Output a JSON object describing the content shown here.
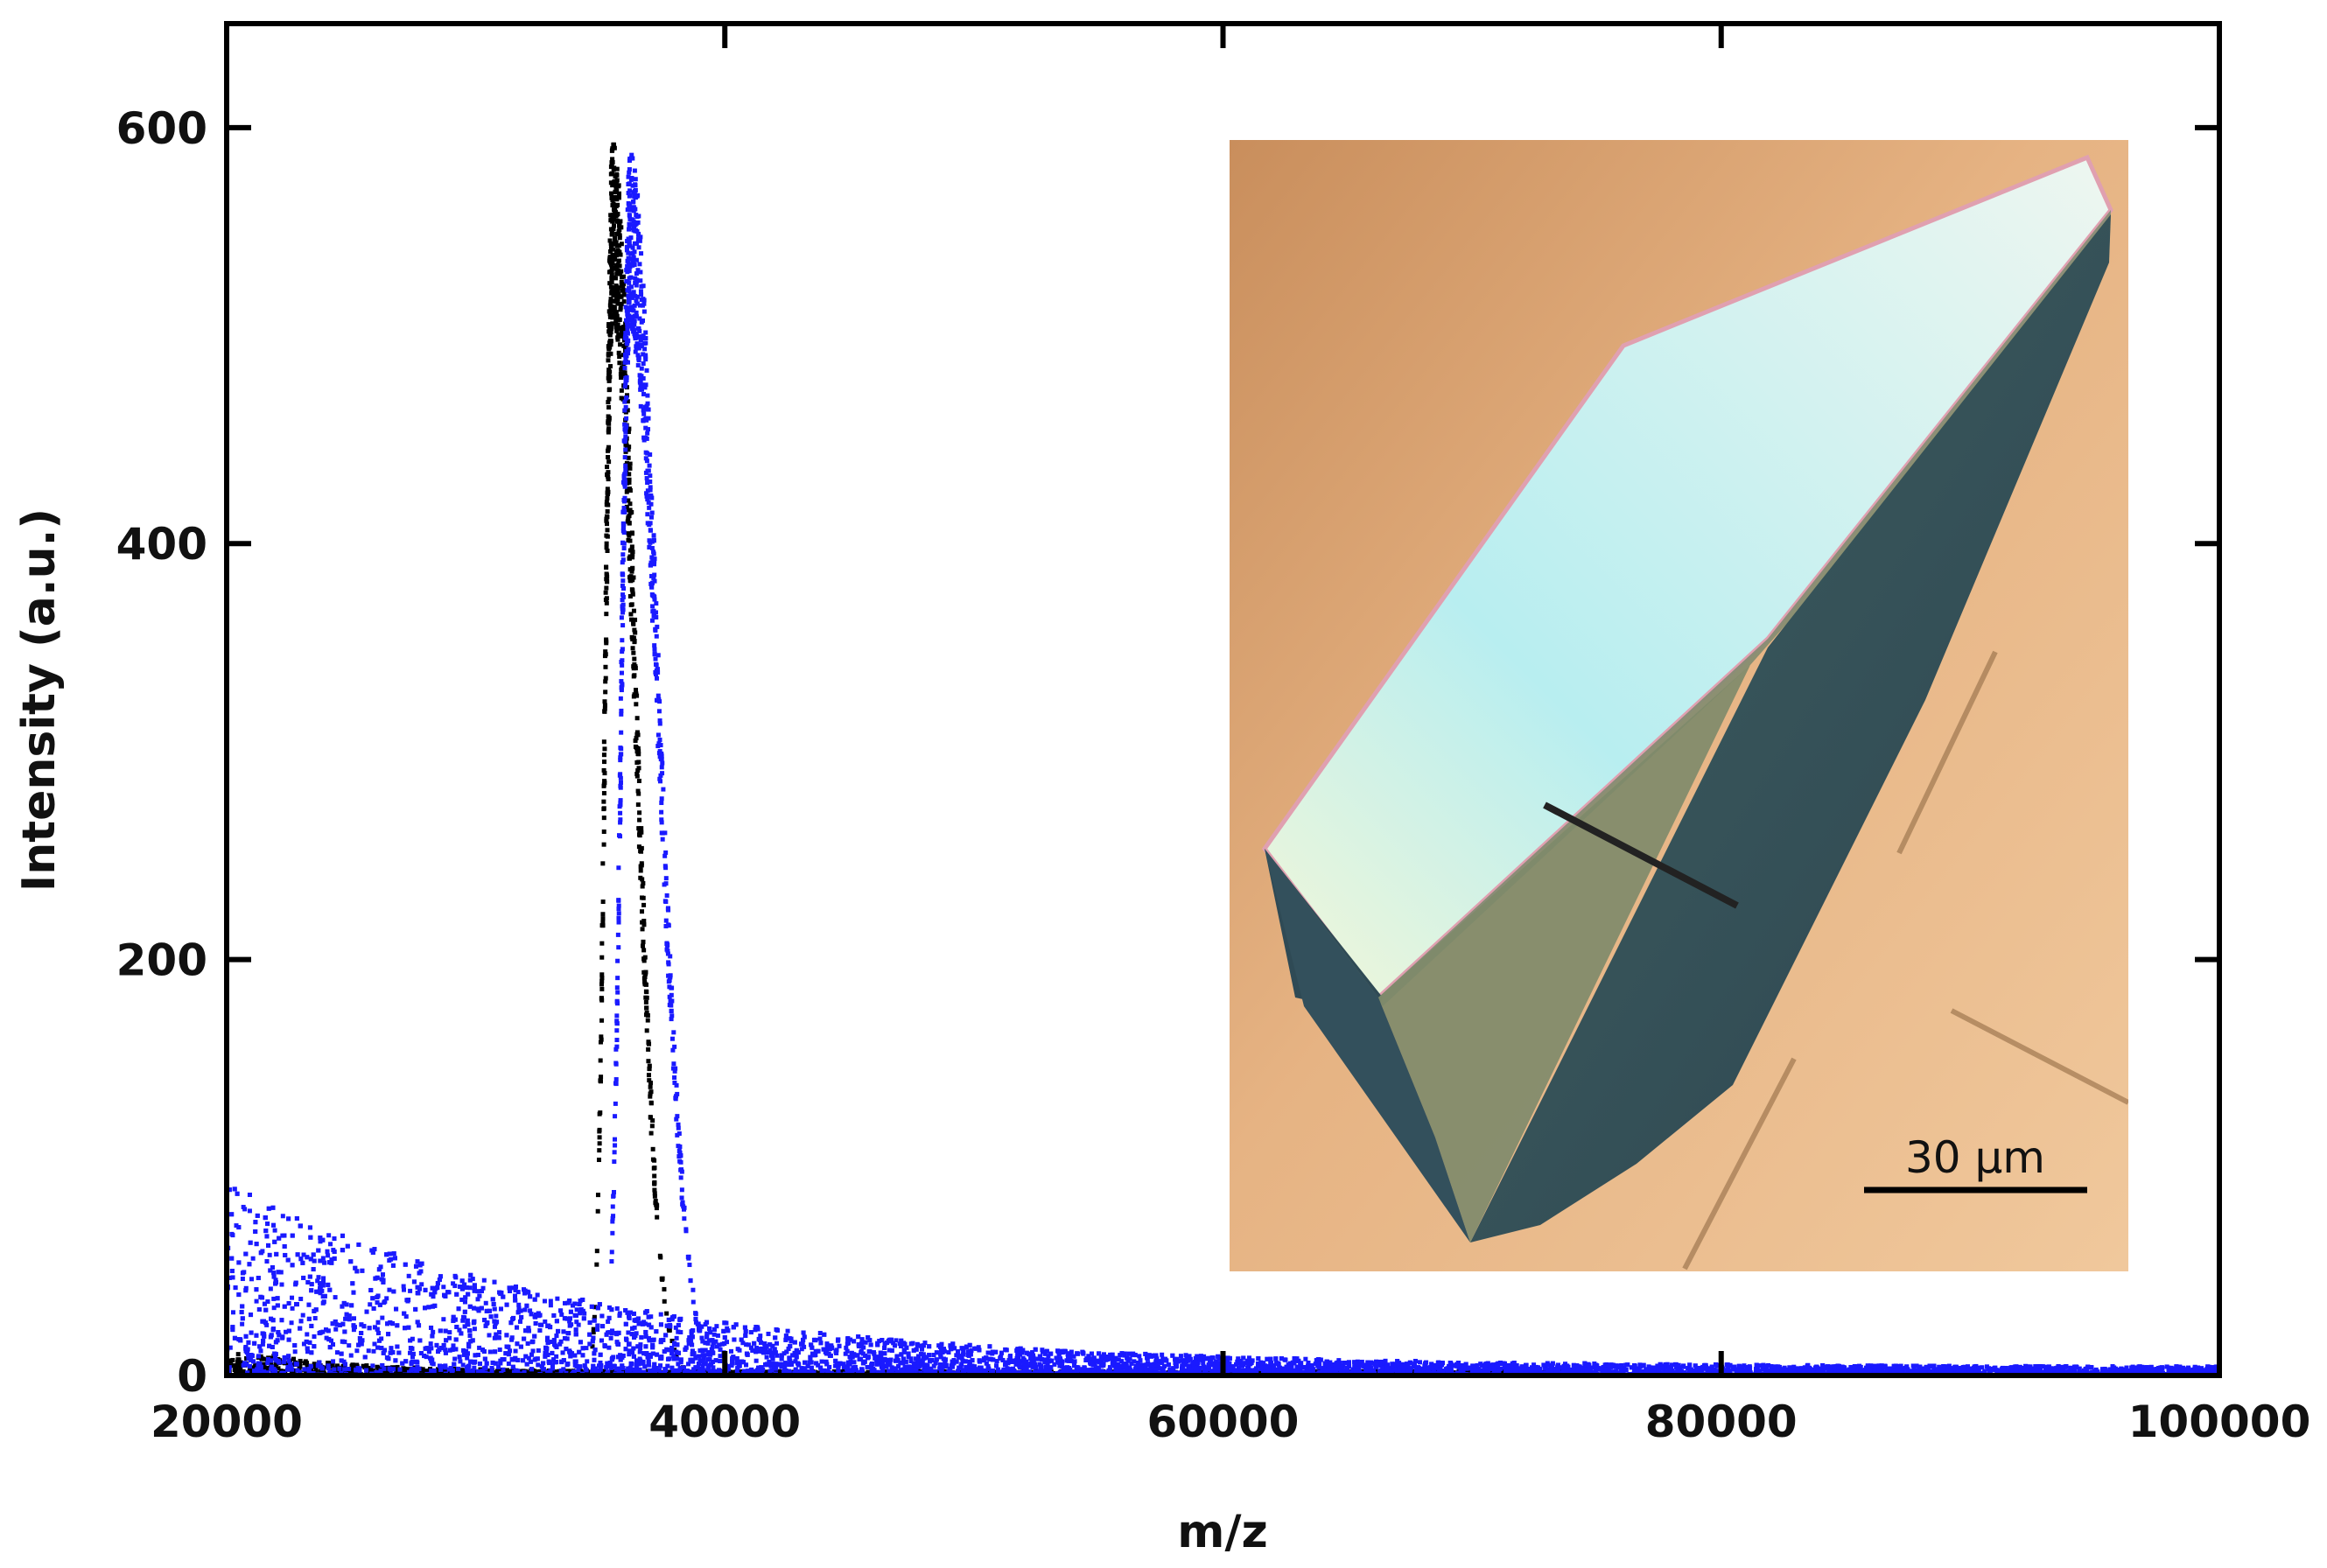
{
  "chart_data": {
    "type": "scatter",
    "title": "",
    "xlabel": "m/z",
    "ylabel": "Intensity (a.u.)",
    "xlim": [
      20000,
      100000
    ],
    "ylim": [
      0,
      650
    ],
    "x_ticks": [
      20000,
      40000,
      60000,
      80000,
      100000
    ],
    "x_tick_labels": [
      "20000",
      "40000",
      "60000",
      "80000",
      "100000"
    ],
    "y_ticks": [
      0,
      200,
      400,
      600
    ],
    "y_tick_labels": [
      "0",
      "200",
      "400",
      "600"
    ],
    "grid": false,
    "legend": "none",
    "series": [
      {
        "color": "#000000",
        "peak_x": 35500,
        "peak_y": 595,
        "baseline_x_range": [
          20000,
          75000
        ],
        "baseline_y_max": 12
      },
      {
        "color": "#1a1aff",
        "peak_x": 36200,
        "peak_y": 590,
        "baseline_x_range": [
          20000,
          100000
        ],
        "baseline_y_max": 90
      }
    ],
    "inset": {
      "description_icon": "crystal-micrograph",
      "scale_bar_label": "30 µm"
    }
  }
}
